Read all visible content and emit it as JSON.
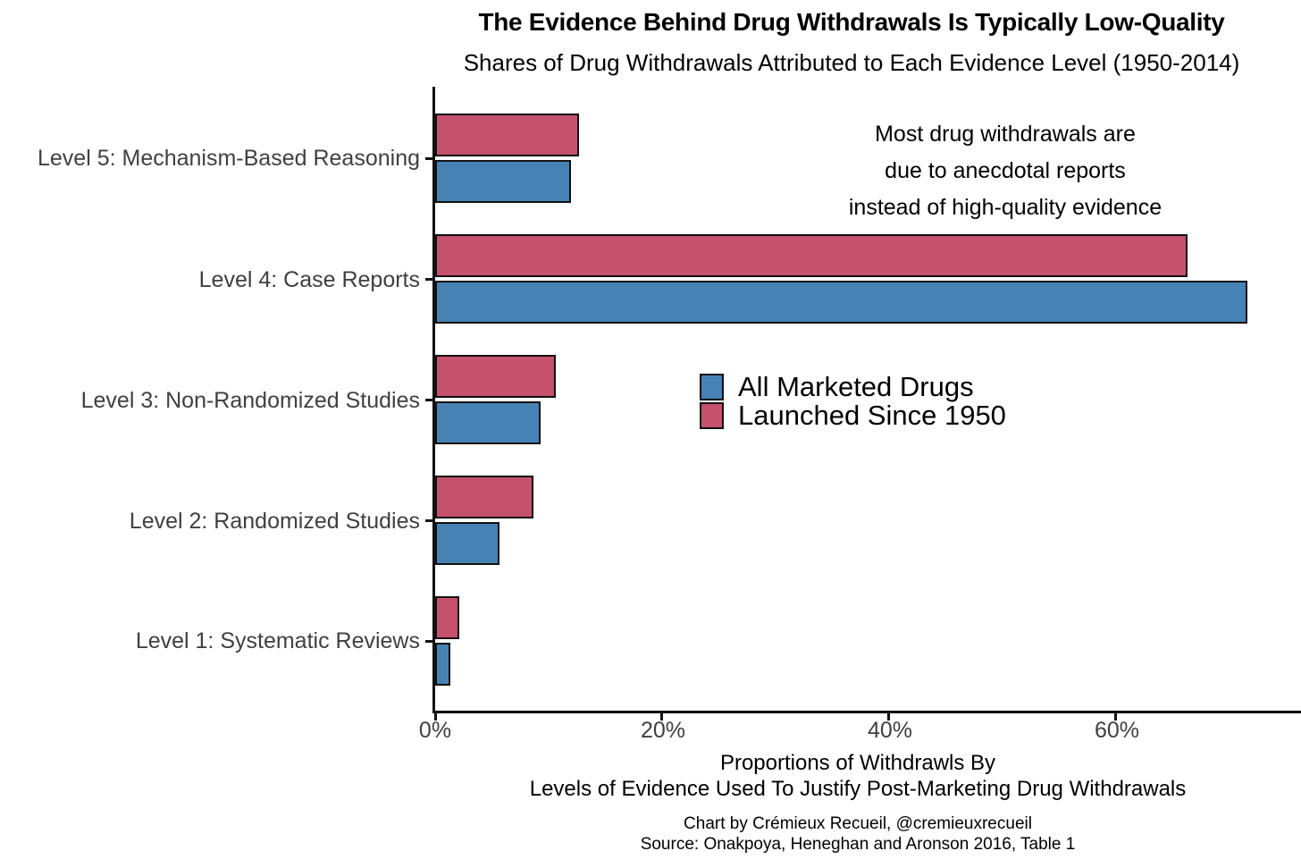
{
  "header": {
    "title": "The Evidence Behind Drug Withdrawals Is Typically Low-Quality",
    "subtitle": "Shares of Drug Withdrawals Attributed to Each Evidence Level (1950-2014)"
  },
  "chart_data": {
    "type": "bar",
    "orientation": "horizontal",
    "categories": [
      "Level 5: Mechanism-Based Reasoning",
      "Level 4: Case Reports",
      "Level 3: Non-Randomized Studies",
      "Level 2: Randomized Studies",
      "Level 1: Systematic Reviews"
    ],
    "series": [
      {
        "name": "All Marketed Drugs",
        "color": "#4682B4",
        "values": [
          12.0,
          71.6,
          9.3,
          5.7,
          1.3
        ]
      },
      {
        "name": "Launched Since 1950",
        "color": "#C5516D",
        "values": [
          12.7,
          66.3,
          10.6,
          8.7,
          2.1
        ]
      }
    ],
    "x_ticks": [
      {
        "value": 0,
        "label": "0%"
      },
      {
        "value": 20,
        "label": "20%"
      },
      {
        "value": 40,
        "label": "40%"
      },
      {
        "value": 60,
        "label": "60%"
      }
    ],
    "xlim": [
      0,
      76.3
    ],
    "grid": false,
    "legend_position": "center",
    "xlabel_line1": "Proportions of Withdrawls By",
    "xlabel_line2": "Levels of Evidence Used To Justify Post-Marketing Drug Withdrawals"
  },
  "annotation": {
    "line1": "Most drug withdrawals are",
    "line2": "due to anecdotal reports",
    "line3": "instead of high-quality evidence"
  },
  "footer": {
    "credit": "Chart by Crémieux Recueil, @cremieuxrecueil",
    "source": "Source: Onakpoya, Heneghan and Aronson 2016, Table 1"
  },
  "colors": {
    "blue_series": "#4682B4",
    "red_series": "#C5516D",
    "axis": "#111111",
    "label_gray": "#404040"
  }
}
